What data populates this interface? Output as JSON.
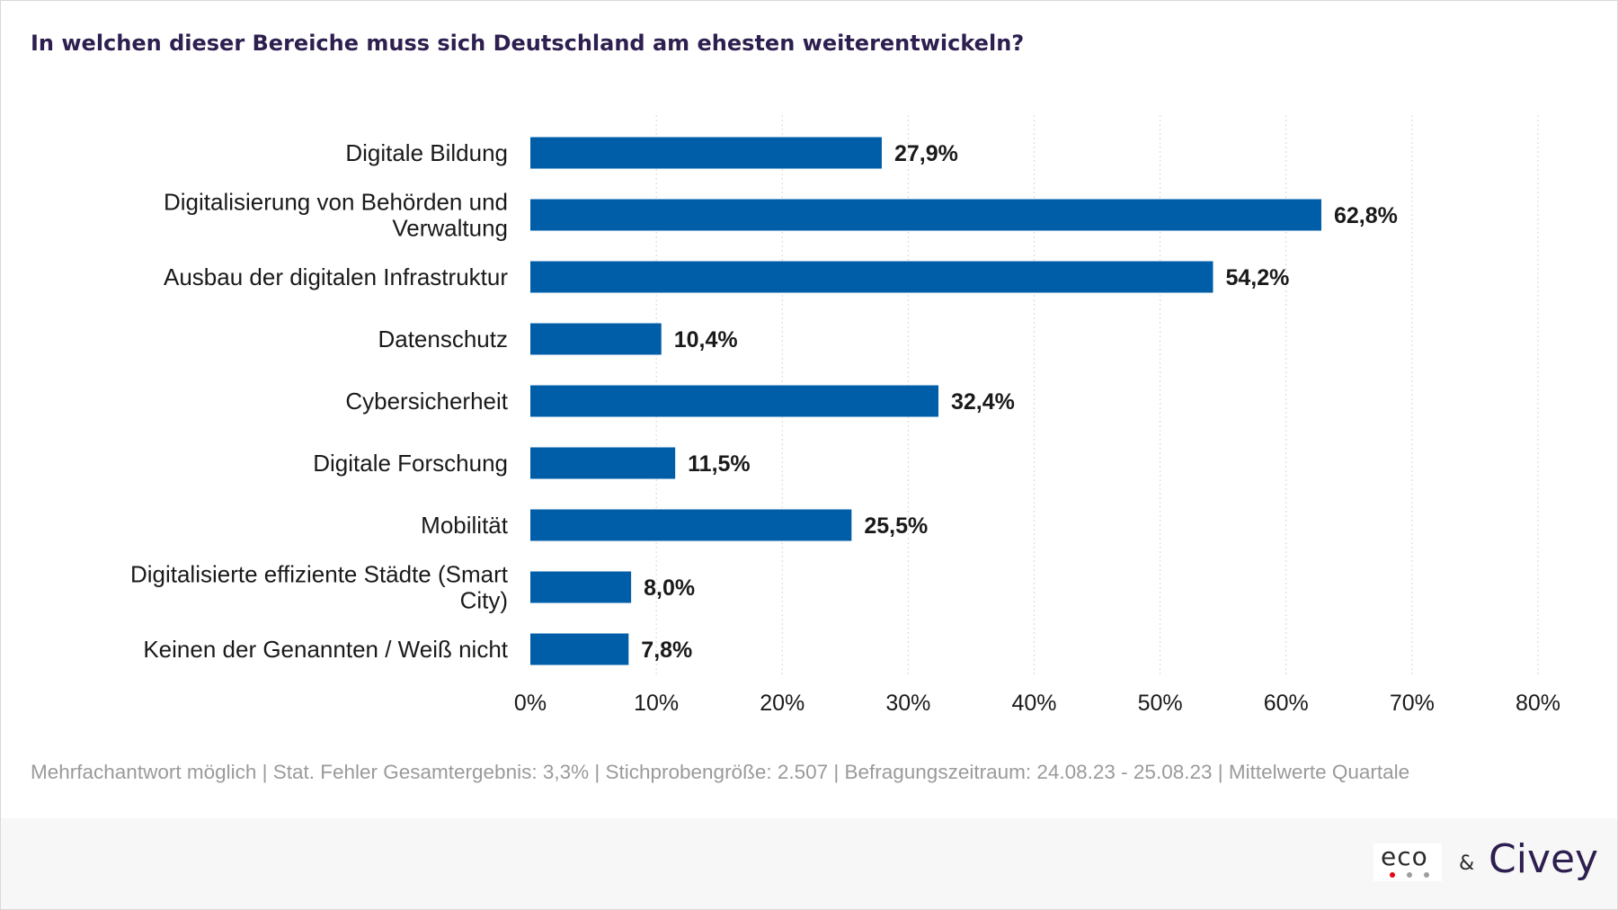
{
  "title": "In welchen dieser Bereiche muss sich Deutschland am ehesten weiterentwickeln?",
  "footnote": "Mehrfachantwort möglich | Stat. Fehler Gesamtergebnis: 3,3% | Stichprobengröße: 2.507 | Befragungszeitraum: 24.08.23 - 25.08.23 | Mittelwerte Quartale",
  "logos": {
    "eco": "eco",
    "ampersand": "&",
    "civey": "Civey"
  },
  "colors": {
    "bar": "#005ea8",
    "title": "#2d1f4f",
    "footnote": "#9a9a9a",
    "eco_dot1": "#e30613",
    "eco_dot2": "#9d9d9d",
    "eco_dot3": "#9d9d9d"
  },
  "chart_data": {
    "type": "bar",
    "orientation": "horizontal",
    "categories": [
      [
        "Digitale Bildung"
      ],
      [
        "Digitalisierung von Behörden und",
        "Verwaltung"
      ],
      [
        "Ausbau der digitalen Infrastruktur"
      ],
      [
        "Datenschutz"
      ],
      [
        "Cybersicherheit"
      ],
      [
        "Digitale Forschung"
      ],
      [
        "Mobilität"
      ],
      [
        "Digitalisierte effiziente Städte (Smart",
        "City)"
      ],
      [
        "Keinen der Genannten / Weiß nicht"
      ]
    ],
    "values": [
      27.9,
      62.8,
      54.2,
      10.4,
      32.4,
      11.5,
      25.5,
      8.0,
      7.8
    ],
    "value_labels": [
      "27,9%",
      "62,8%",
      "54,2%",
      "10,4%",
      "32,4%",
      "11,5%",
      "25,5%",
      "8,0%",
      "7,8%"
    ],
    "xlim": [
      0,
      80
    ],
    "xticks": [
      0,
      10,
      20,
      30,
      40,
      50,
      60,
      70,
      80
    ],
    "xtick_labels": [
      "0%",
      "10%",
      "20%",
      "30%",
      "40%",
      "50%",
      "60%",
      "70%",
      "80%"
    ],
    "grid": "vertical-dotted",
    "legend": "none"
  }
}
